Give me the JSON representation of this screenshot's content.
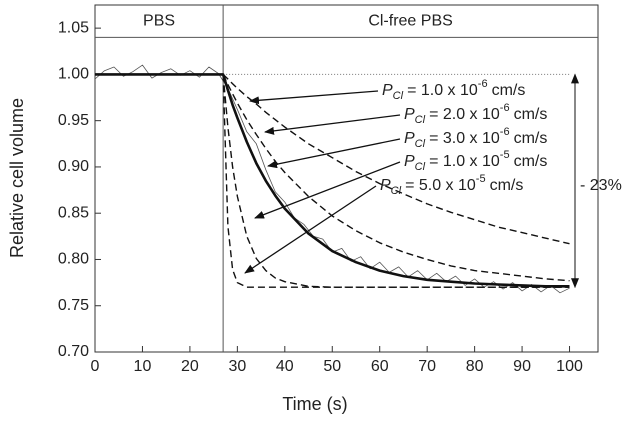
{
  "chart_data": {
    "type": "line",
    "x_label": "Time (s)",
    "y_label": "Relative cell volume",
    "xlim": [
      0,
      106
    ],
    "ylim": [
      0.7,
      1.075
    ],
    "xticks": [
      0,
      10,
      20,
      30,
      40,
      50,
      60,
      70,
      80,
      90,
      100
    ],
    "yticks": [
      {
        "value": 0.7,
        "label": "0.70"
      },
      0.75,
      {
        "value": 0.8,
        "label": "0.80"
      },
      0.85,
      {
        "value": 0.9,
        "label": "0.90"
      },
      0.95,
      {
        "value": 1.0,
        "label": "1.00"
      },
      1.05
    ],
    "phases": {
      "switch_time": 27,
      "header_y": 1.04,
      "before": "PBS",
      "after": "Cl-free PBS"
    },
    "baseline": {
      "y": 1.0,
      "x": [
        27,
        100
      ]
    },
    "drop": {
      "from": 1.0,
      "to": 0.77,
      "label": "- 23%"
    },
    "series": [
      {
        "color": "#555555",
        "line_style": "thin",
        "x": [
          0,
          2,
          4,
          6,
          8,
          10,
          12,
          14,
          16,
          18,
          20,
          22,
          24,
          26,
          28,
          30,
          32,
          34,
          36,
          38,
          40,
          42,
          44,
          46,
          48,
          50,
          52,
          54,
          56,
          58,
          60,
          62,
          64,
          66,
          68,
          70,
          72,
          74,
          76,
          78,
          80,
          82,
          84,
          86,
          88,
          90,
          92,
          94,
          96,
          98,
          100
        ],
        "values": [
          0.995,
          1.004,
          1.008,
          0.998,
          1.003,
          1.01,
          0.996,
          1.002,
          1.006,
          0.999,
          1.004,
          0.997,
          1.008,
          1.001,
          0.985,
          0.962,
          0.938,
          0.925,
          0.897,
          0.873,
          0.862,
          0.845,
          0.838,
          0.825,
          0.822,
          0.808,
          0.812,
          0.798,
          0.803,
          0.79,
          0.797,
          0.786,
          0.792,
          0.781,
          0.788,
          0.778,
          0.785,
          0.776,
          0.782,
          0.772,
          0.779,
          0.77,
          0.776,
          0.768,
          0.775,
          0.766,
          0.773,
          0.765,
          0.772,
          0.764,
          0.769
        ]
      },
      {
        "color": "#111111",
        "line_style": "dashed",
        "x": [
          27,
          28,
          29,
          30,
          32,
          34,
          36,
          38,
          40,
          45,
          50,
          55,
          60,
          65,
          70,
          75,
          80,
          85,
          90,
          95,
          100
        ],
        "values": [
          1.0,
          0.995,
          0.99,
          0.985,
          0.976,
          0.968,
          0.959,
          0.951,
          0.943,
          0.925,
          0.91,
          0.895,
          0.882,
          0.871,
          0.86,
          0.851,
          0.843,
          0.835,
          0.829,
          0.823,
          0.817
        ]
      },
      {
        "color": "#111111",
        "line_style": "dashed",
        "x": [
          27,
          28,
          29,
          30,
          32,
          34,
          36,
          38,
          40,
          45,
          50,
          55,
          60,
          65,
          70,
          75,
          80,
          85,
          90,
          95,
          100
        ],
        "values": [
          1.0,
          0.989,
          0.979,
          0.969,
          0.951,
          0.935,
          0.92,
          0.906,
          0.894,
          0.868,
          0.847,
          0.831,
          0.818,
          0.808,
          0.8,
          0.793,
          0.788,
          0.785,
          0.782,
          0.779,
          0.777
        ]
      },
      {
        "color": "#111111",
        "line_style": "thick",
        "x": [
          0,
          27,
          28,
          29,
          30,
          32,
          34,
          36,
          38,
          40,
          45,
          50,
          55,
          60,
          65,
          70,
          75,
          80,
          85,
          90,
          95,
          100
        ],
        "values": [
          1.0,
          1.0,
          0.983,
          0.967,
          0.953,
          0.927,
          0.904,
          0.885,
          0.869,
          0.855,
          0.828,
          0.809,
          0.797,
          0.788,
          0.782,
          0.778,
          0.776,
          0.774,
          0.773,
          0.772,
          0.771,
          0.771
        ]
      },
      {
        "color": "#111111",
        "line_style": "dashed",
        "x": [
          27,
          28,
          29,
          30,
          32,
          34,
          36,
          38,
          40,
          45,
          50,
          55,
          60,
          65,
          70,
          75,
          80,
          85,
          90,
          95,
          100
        ],
        "values": [
          1.0,
          0.943,
          0.9,
          0.868,
          0.825,
          0.801,
          0.788,
          0.78,
          0.776,
          0.771,
          0.77,
          0.77,
          0.77,
          0.77,
          0.77,
          0.77,
          0.77,
          0.77,
          0.77,
          0.77,
          0.77
        ]
      },
      {
        "color": "#111111",
        "line_style": "dashed",
        "x": [
          27,
          28,
          29,
          30,
          32,
          34,
          36,
          38,
          40,
          45,
          50,
          55,
          60,
          65,
          70,
          75,
          80,
          85,
          90,
          95,
          100
        ],
        "values": [
          1.0,
          0.836,
          0.789,
          0.775,
          0.77,
          0.77,
          0.77,
          0.77,
          0.77,
          0.77,
          0.77,
          0.77,
          0.77,
          0.77,
          0.77,
          0.77,
          0.77,
          0.77,
          0.77,
          0.77,
          0.77
        ]
      }
    ],
    "annotations": [
      {
        "symbol": "P",
        "sub": "Cl",
        "text": "= 1.0 x 10",
        "sup": "-6",
        "unit": "cm/s"
      },
      {
        "symbol": "P",
        "sub": "Cl",
        "text": "= 2.0 x 10",
        "sup": "-6",
        "unit": "cm/s"
      },
      {
        "symbol": "P",
        "sub": "Cl",
        "text": "= 3.0 x 10",
        "sup": "-6",
        "unit": "cm/s"
      },
      {
        "symbol": "P",
        "sub": "Cl",
        "text": "= 1.0 x 10",
        "sup": "-5",
        "unit": "cm/s"
      },
      {
        "symbol": "P",
        "sub": "Cl",
        "text": "= 5.0 x 10",
        "sup": "-5",
        "unit": "cm/s"
      }
    ]
  }
}
